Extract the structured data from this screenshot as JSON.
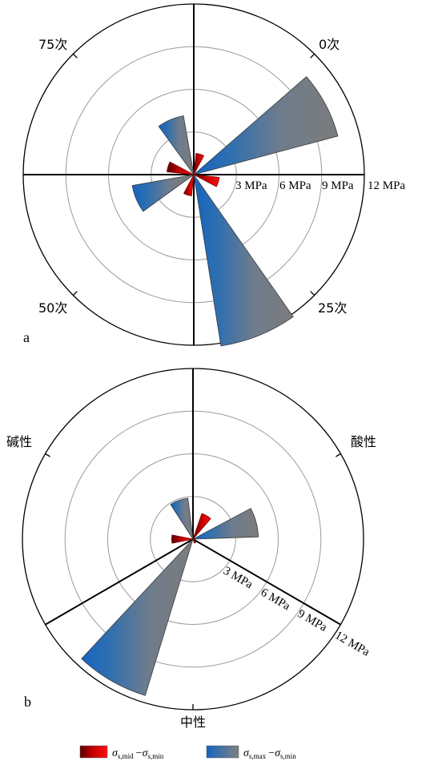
{
  "chart_data": [
    {
      "type": "polar-bar",
      "panel_label": "a",
      "sector_labels": [
        "0次",
        "25次",
        "50次",
        "75次"
      ],
      "ring_labels": [
        "3 MPa",
        "6 MPa",
        "9 MPa",
        "12 MPa"
      ],
      "r_max": 12,
      "series": [
        {
          "name": "σs,mid−σs,min",
          "color": "#e00000",
          "points": [
            {
              "angle_deg": 17,
              "r": 1.5
            },
            {
              "angle_deg": 107,
              "r": 1.8
            },
            {
              "angle_deg": 197,
              "r": 1.5
            },
            {
              "angle_deg": 287,
              "r": 1.9
            }
          ]
        },
        {
          "name": "σs,max−σs,min",
          "color": "#7b7b7b",
          "points": [
            {
              "angle_deg": 62,
              "r": 10.5
            },
            {
              "angle_deg": 158,
              "r": 12.2
            },
            {
              "angle_deg": 247,
              "r": 4.4
            },
            {
              "angle_deg": 337,
              "r": 4.2
            }
          ]
        }
      ]
    },
    {
      "type": "polar-bar",
      "panel_label": "b",
      "sector_labels": [
        "酸性",
        "中性",
        "碱性"
      ],
      "ring_labels": [
        "3 MPa",
        "6 MPa",
        "9 MPa",
        "12 MPa"
      ],
      "r_max": 12,
      "series": [
        {
          "name": "σs,mid−σs,min",
          "color": "#e00000",
          "points": [
            {
              "angle_deg": 30,
              "r": 1.9
            },
            {
              "angle_deg": 150,
              "r": 0.3
            },
            {
              "angle_deg": 270,
              "r": 1.5
            }
          ]
        },
        {
          "name": "σs,max−σs,min",
          "color": "#7b7b7b",
          "points": [
            {
              "angle_deg": 75,
              "r": 4.6
            },
            {
              "angle_deg": 210,
              "r": 11.5
            },
            {
              "angle_deg": 340,
              "r": 2.9
            }
          ]
        }
      ]
    }
  ],
  "legend": [
    {
      "sigma": "σ",
      "sub1": "s,mid",
      "dash": "−",
      "sigma2": "σ",
      "sub2": "s,min",
      "color": "#e00000"
    },
    {
      "sigma": "σ",
      "sub1": "s,max",
      "dash": "−",
      "sigma2": "σ",
      "sub2": "s,min",
      "color": "#7b7b7b"
    }
  ]
}
